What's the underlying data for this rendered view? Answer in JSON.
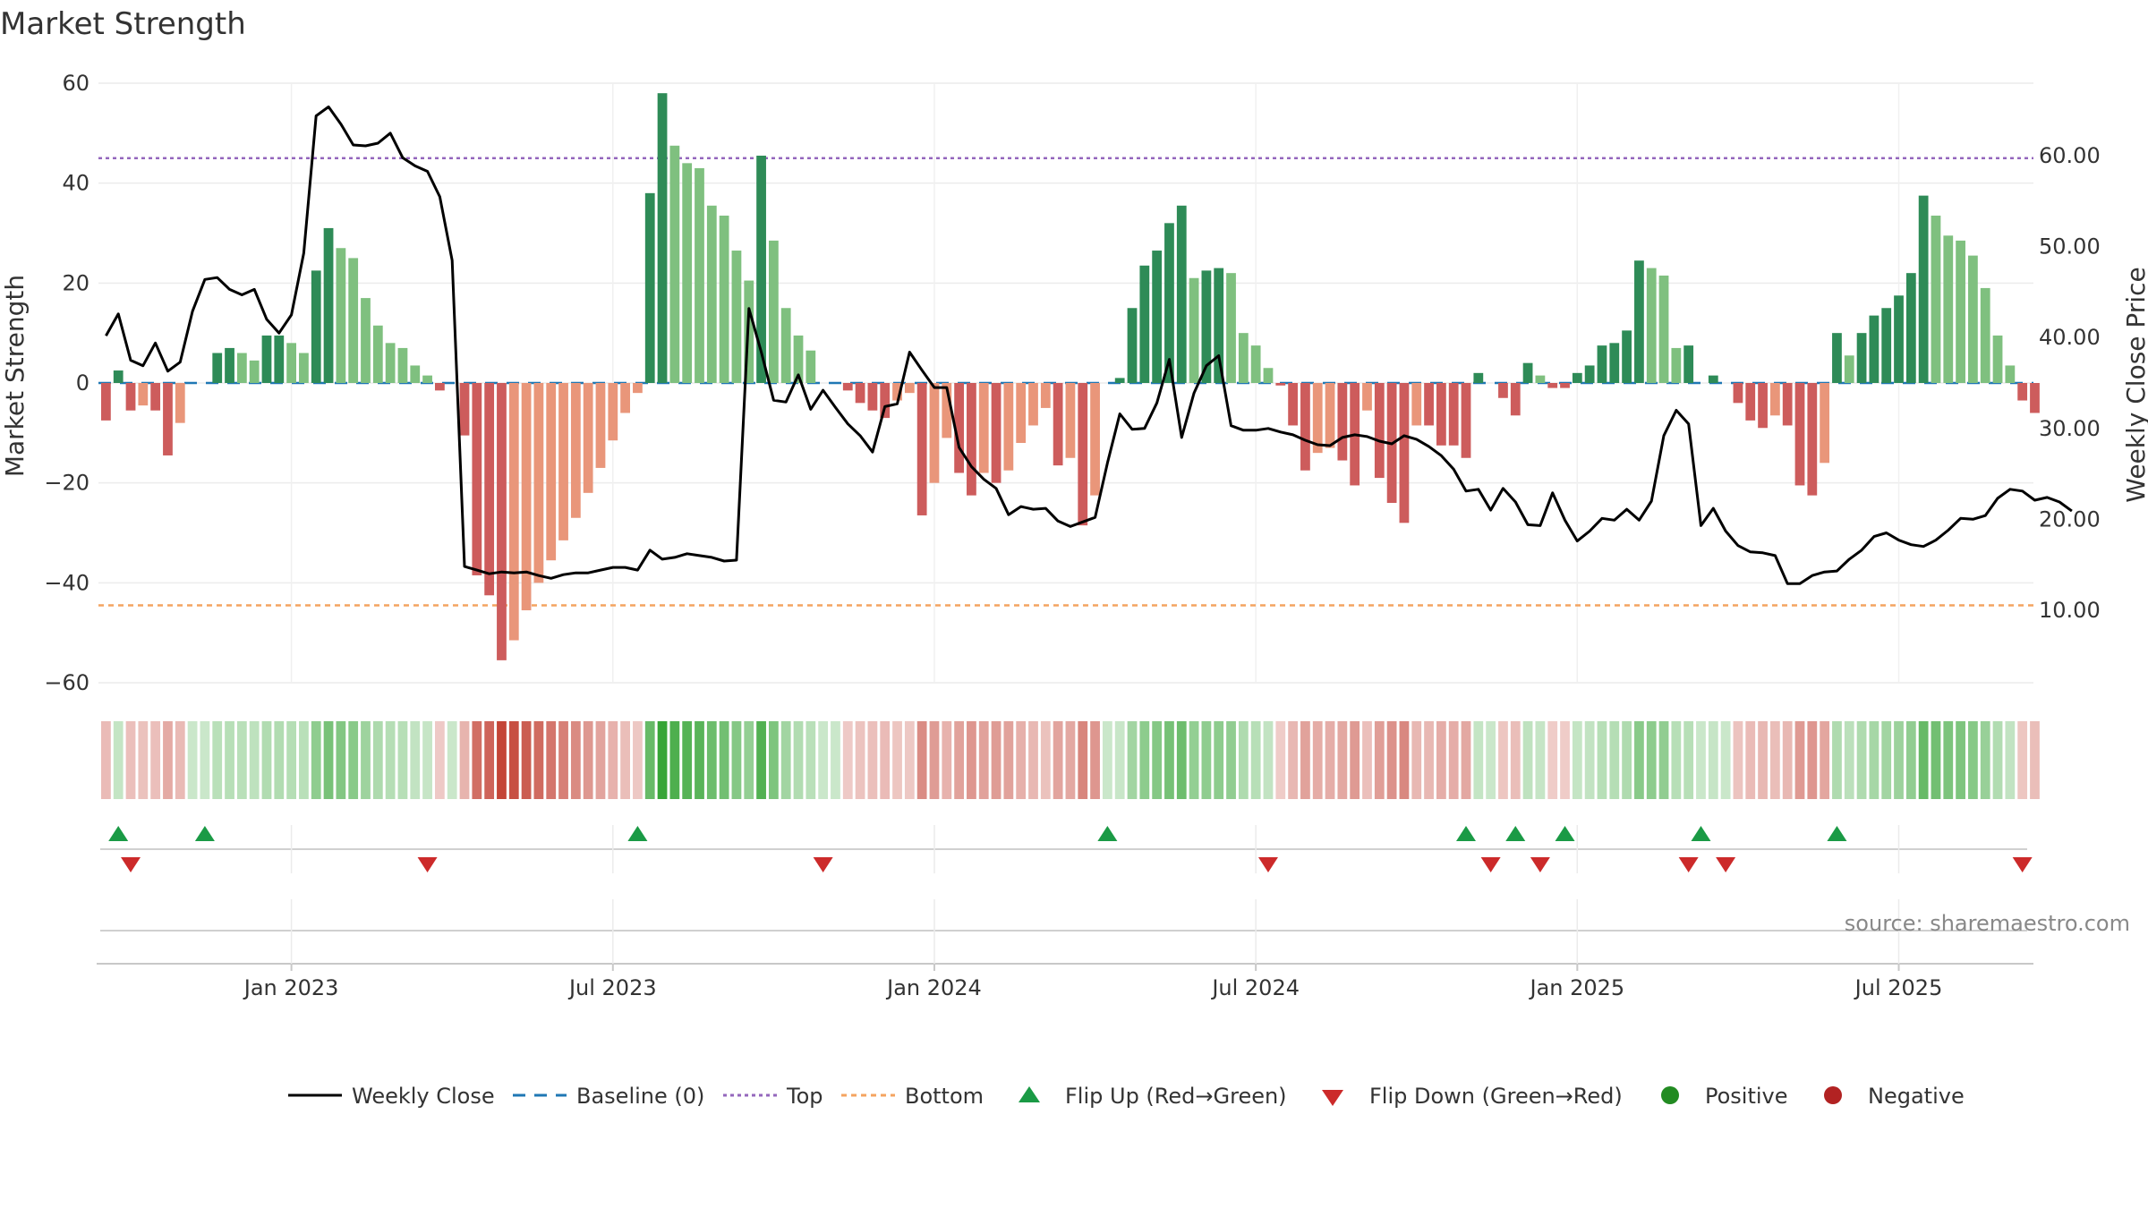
{
  "chart_data": {
    "type": "bar",
    "title": "Market Strength",
    "ylabel": "Market Strength",
    "y2label": "Weekly Close Price",
    "ylim": [
      -60,
      60
    ],
    "y2lim": [
      2.0,
      68.0
    ],
    "y_ticks": [
      "60",
      "40",
      "20",
      "0",
      "−20",
      "−40",
      "−60"
    ],
    "y_tick_values": [
      60,
      40,
      20,
      0,
      -20,
      -40,
      -60
    ],
    "y2_ticks": [
      "60.00",
      "50.00",
      "40.00",
      "30.00",
      "20.00",
      "10.00"
    ],
    "y2_tick_values": [
      60,
      50,
      40,
      30,
      20,
      10
    ],
    "x_ticks": [
      "Jan 2023",
      "Jul 2023",
      "Jan 2024",
      "Jul 2024",
      "Jan 2025",
      "Jul 2025"
    ],
    "x_tick_weeks": [
      15,
      41,
      67,
      93,
      119,
      145
    ],
    "top_line": 45,
    "bottom_line": -44.5,
    "strength": [
      -7.5,
      2.5,
      -5.5,
      -4.5,
      -5.5,
      -14.5,
      -8,
      0,
      0,
      6,
      7,
      6,
      4.5,
      9.5,
      9.5,
      8,
      6,
      22.5,
      31,
      27,
      25,
      17,
      11.5,
      8,
      7,
      3.5,
      1.5,
      -1.5,
      0,
      -10.5,
      -38.5,
      -42.5,
      -55.5,
      -51.5,
      -45.5,
      -40,
      -35.5,
      -31.5,
      -27,
      -22,
      -17,
      -11.5,
      -6,
      -2,
      38,
      58,
      47.5,
      44,
      43,
      35.5,
      33.5,
      26.5,
      20.5,
      45.5,
      28.5,
      15,
      9.5,
      6.5,
      0,
      0,
      -1.5,
      -4,
      -5.5,
      -7,
      -3.5,
      -2,
      -26.5,
      -20,
      -11,
      -18,
      -22.5,
      -18,
      -20,
      -17.5,
      -12,
      -8.5,
      -5,
      -16.5,
      -15,
      -28.5,
      -22.5,
      0,
      1,
      15,
      23.5,
      26.5,
      32,
      35.5,
      21,
      22.5,
      23,
      22,
      10,
      7.5,
      3,
      -0.5,
      -8.5,
      -17.5,
      -14,
      -13,
      -15.5,
      -20.5,
      -5.5,
      -19,
      -24,
      -28,
      -8.5,
      -8.5,
      -12.5,
      -12.5,
      -15,
      2,
      0,
      -3,
      -6.5,
      4,
      1.5,
      -1,
      -1,
      2,
      3.5,
      7.5,
      8,
      10.5,
      24.5,
      23,
      21.5,
      7,
      7.5,
      0,
      1.5,
      0,
      -4,
      -7.5,
      -9,
      -6.5,
      -8.5,
      -20.5,
      -22.5,
      -16,
      10,
      5.5,
      10,
      13.5,
      15,
      17.5,
      22,
      37.5,
      33.5,
      29.5,
      28.5,
      25.5,
      19,
      9.5,
      3.5,
      -3.5,
      -6
    ],
    "weekly_close": [
      40.2,
      42.6,
      37.5,
      36.9,
      39.4,
      36.3,
      37.3,
      42.9,
      46.4,
      46.6,
      45.3,
      44.7,
      45.3,
      42.0,
      40.5,
      42.5,
      49.3,
      64.4,
      65.4,
      63.5,
      61.2,
      61.1,
      61.4,
      62.5,
      59.8,
      58.9,
      58.3,
      55.5,
      48.5,
      14.8,
      14.4,
      14.0,
      14.2,
      14.1,
      14.2,
      13.8,
      13.5,
      13.9,
      14.1,
      14.1,
      14.4,
      14.7,
      14.7,
      14.4,
      16.6,
      15.6,
      15.8,
      16.2,
      16.0,
      15.8,
      15.4,
      15.5,
      43.2,
      38.4,
      33.1,
      32.9,
      35.9,
      32.1,
      34.2,
      32.3,
      30.5,
      29.2,
      27.4,
      32.4,
      32.7,
      38.4,
      36.4,
      34.5,
      34.5,
      27.9,
      25.8,
      24.4,
      23.4,
      20.5,
      21.4,
      21.1,
      21.2,
      19.8,
      19.2,
      19.7,
      20.2,
      26.2,
      31.6,
      29.9,
      30.0,
      32.8,
      37.6,
      29.0,
      33.9,
      36.9,
      38.0,
      30.3,
      29.8,
      29.8,
      30.0,
      29.6,
      29.3,
      28.7,
      28.2,
      28.1,
      29.0,
      29.3,
      29.1,
      28.6,
      28.3,
      29.2,
      28.8,
      28.0,
      27.0,
      25.5,
      23.1,
      23.3,
      21.0,
      23.4,
      21.9,
      19.4,
      19.3,
      22.9,
      19.9,
      17.6,
      18.7,
      20.1,
      19.9,
      21.1,
      19.9,
      22.0,
      29.2,
      32.0,
      30.5,
      19.3,
      21.2,
      18.7,
      17.1,
      16.4,
      16.3,
      16.0,
      12.9,
      12.9,
      13.8,
      14.2,
      14.3,
      15.6,
      16.6,
      18.1,
      18.5,
      17.7,
      17.2,
      17.0,
      17.7,
      18.8,
      20.1,
      20.0,
      20.4,
      22.3,
      23.3,
      23.1,
      22.1,
      22.4,
      21.9,
      20.9
    ],
    "flip_up_weeks": [
      1,
      8,
      43,
      81,
      110,
      114,
      118,
      129,
      140
    ],
    "flip_down_weeks": [
      2,
      26,
      58,
      94,
      112,
      116,
      128,
      131,
      155
    ],
    "legend": [
      "Weekly Close",
      "Baseline (0)",
      "Top",
      "Bottom",
      "Flip Up (Red→Green)",
      "Flip Down (Green→Red)",
      "Positive",
      "Negative"
    ],
    "colors": {
      "pos_strong": "#2e8b57",
      "pos_light": "#7fc07f",
      "neg_strong": "#cd5c5c",
      "neg_light": "#e9967a",
      "top": "#9467bd",
      "bottom": "#f4a460",
      "baseline": "#1f77b4",
      "close": "#000000",
      "flip_up": "#1a9a45",
      "flip_down": "#cc2a2a",
      "positive_dot": "#228b22",
      "negative_dot": "#b22222"
    }
  },
  "source": "source: sharemaestro.com"
}
